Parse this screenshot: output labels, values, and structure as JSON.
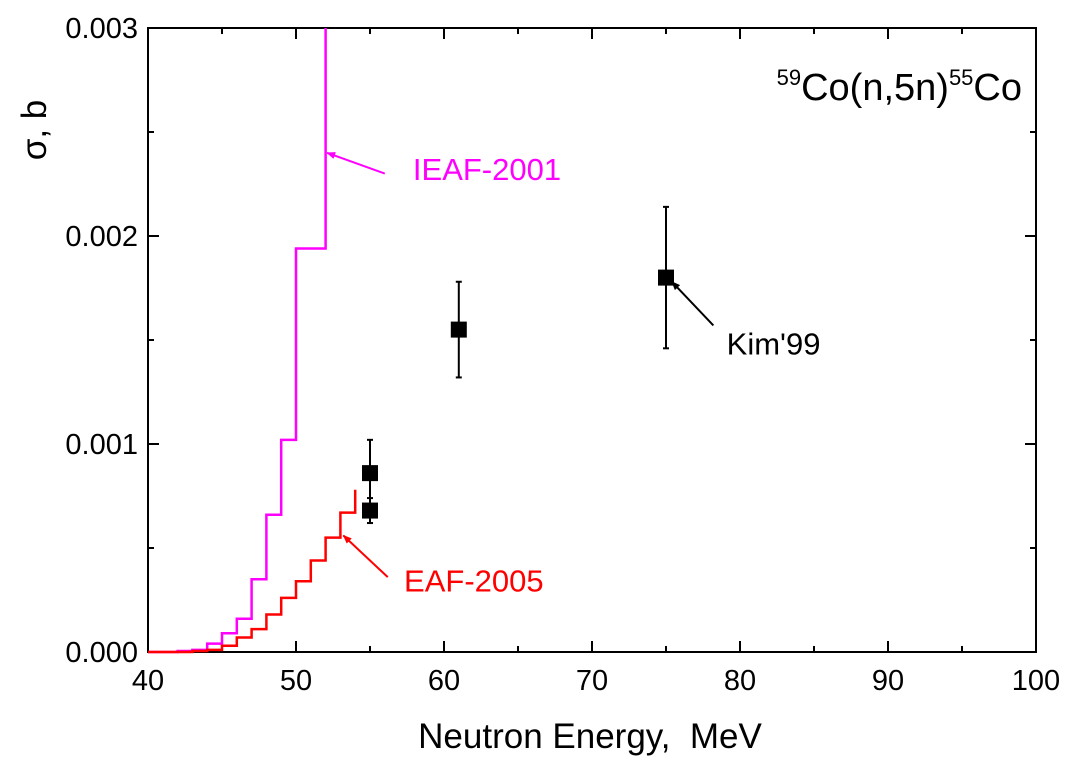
{
  "chart_data": {
    "type": "line",
    "title": "",
    "xlabel": "Neutron Energy,  MeV",
    "ylabel": "σ, b",
    "xlim": [
      40,
      100
    ],
    "ylim": [
      0,
      0.003
    ],
    "xticks": [
      "40",
      "50",
      "60",
      "70",
      "80",
      "90",
      "100"
    ],
    "yticks": [
      "0.000",
      "0.001",
      "0.002",
      "0.003"
    ],
    "grid": false,
    "reaction": {
      "mass_in": "59",
      "core": "Co(n,5n)",
      "mass_out": "55",
      "element_out": "Co"
    },
    "series": [
      {
        "name": "IEAF-2001",
        "style": "step",
        "color": "#ff00ff",
        "x": [
          40,
          41,
          42,
          43,
          44,
          45,
          46,
          47,
          48,
          49,
          50,
          51,
          52
        ],
        "y": [
          0.0,
          0.0,
          5e-06,
          1e-05,
          4e-05,
          9e-05,
          0.00016,
          0.00035,
          0.00066,
          0.00102,
          0.00194,
          0.00194,
          0.003
        ]
      },
      {
        "name": "EAF-2005",
        "style": "step",
        "color": "#ff0000",
        "x": [
          40,
          41,
          42,
          43,
          44,
          45,
          46,
          47,
          48,
          49,
          50,
          51,
          52,
          53,
          54
        ],
        "y": [
          0.0,
          0.0,
          0.0,
          5e-06,
          1e-05,
          3e-05,
          7e-05,
          0.00011,
          0.00018,
          0.00026,
          0.00034,
          0.00044,
          0.00055,
          0.00067,
          0.00078
        ]
      },
      {
        "name": "Kim'99",
        "style": "markers",
        "color": "#000000",
        "points": [
          {
            "x": 55,
            "y": 0.00086,
            "err": 0.00016
          },
          {
            "x": 55,
            "y": 0.00068,
            "err": 6e-05
          },
          {
            "x": 61,
            "y": 0.00155,
            "err": 0.00023
          },
          {
            "x": 75,
            "y": 0.0018,
            "err": 0.00034
          }
        ]
      }
    ],
    "annotations": [
      {
        "text": "IEAF-2001",
        "color": "#ff00ff",
        "label_x": 57.9,
        "label_y": 0.00227,
        "arrow_from": [
          56.0,
          0.0023
        ],
        "arrow_to": [
          52.1,
          0.0024
        ]
      },
      {
        "text": "EAF-2005",
        "color": "#ff0000",
        "label_x": 57.3,
        "label_y": 0.00029,
        "arrow_from": [
          56.2,
          0.00036
        ],
        "arrow_to": [
          53.2,
          0.00056
        ]
      },
      {
        "text": "Kim'99",
        "color": "#000000",
        "label_x": 79.1,
        "label_y": 0.00143,
        "arrow_from": [
          78.2,
          0.00157
        ],
        "arrow_to": [
          75.4,
          0.00178
        ]
      }
    ]
  }
}
